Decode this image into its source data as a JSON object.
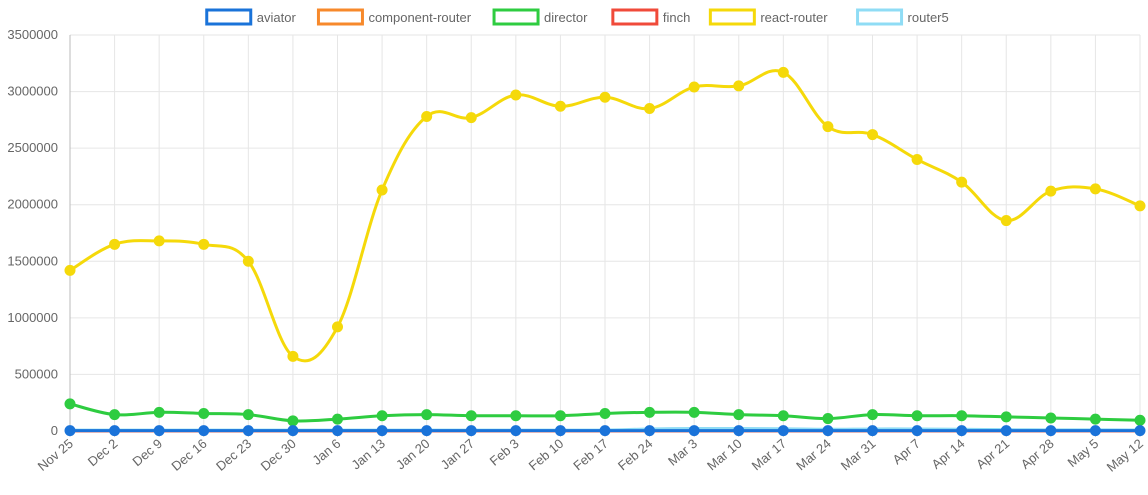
{
  "chart_data": {
    "type": "line",
    "categories": [
      "Nov 25",
      "Dec 2",
      "Dec 9",
      "Dec 16",
      "Dec 23",
      "Dec 30",
      "Jan 6",
      "Jan 13",
      "Jan 20",
      "Jan 27",
      "Feb 3",
      "Feb 10",
      "Feb 17",
      "Feb 24",
      "Mar 3",
      "Mar 10",
      "Mar 17",
      "Mar 24",
      "Mar 31",
      "Apr 7",
      "Apr 14",
      "Apr 21",
      "Apr 28",
      "May 5",
      "May 12"
    ],
    "series": [
      {
        "name": "aviator",
        "color": "#1a73d9",
        "values": [
          3000,
          3000,
          3000,
          3000,
          3000,
          3000,
          3000,
          3000,
          3000,
          3000,
          3000,
          3000,
          3000,
          3000,
          3000,
          3000,
          3000,
          3000,
          3000,
          3000,
          3000,
          3000,
          3000,
          3000,
          3000
        ]
      },
      {
        "name": "component-router",
        "color": "#f7892b",
        "values": [
          2000,
          2000,
          2000,
          2000,
          2000,
          2000,
          2000,
          2000,
          2000,
          2000,
          2000,
          2000,
          2000,
          2000,
          2000,
          2000,
          2000,
          2000,
          2000,
          2000,
          2000,
          2000,
          2000,
          2000,
          2000
        ]
      },
      {
        "name": "director",
        "color": "#2ecc40",
        "values": [
          240000,
          145000,
          165000,
          155000,
          145000,
          90000,
          105000,
          135000,
          145000,
          135000,
          135000,
          135000,
          155000,
          165000,
          165000,
          145000,
          135000,
          110000,
          145000,
          135000,
          135000,
          125000,
          115000,
          105000,
          95000
        ]
      },
      {
        "name": "finch",
        "color": "#f04a3a",
        "values": [
          1000,
          1000,
          1000,
          1000,
          1000,
          1000,
          1000,
          1000,
          1000,
          1000,
          1000,
          1000,
          1000,
          1000,
          1000,
          1000,
          1000,
          1000,
          1000,
          1000,
          1000,
          1000,
          1000,
          1000,
          1000
        ]
      },
      {
        "name": "react-router",
        "color": "#f5d90a",
        "values": [
          1420000,
          1650000,
          1680000,
          1650000,
          1500000,
          660000,
          920000,
          2130000,
          2780000,
          2770000,
          2970000,
          2870000,
          2950000,
          2850000,
          3040000,
          3050000,
          3170000,
          2690000,
          2620000,
          2400000,
          2200000,
          1860000,
          2120000,
          2140000,
          1990000
        ]
      },
      {
        "name": "router5",
        "color": "#8fdcf5",
        "values": [
          8000,
          8000,
          8000,
          8000,
          8000,
          8000,
          8000,
          8000,
          8000,
          8000,
          8000,
          8000,
          8000,
          18000,
          22000,
          22000,
          20000,
          15000,
          18000,
          18000,
          15000,
          12000,
          10000,
          10000,
          9000
        ]
      }
    ],
    "y_ticks": [
      "0",
      "500000",
      "1000000",
      "1500000",
      "2000000",
      "2500000",
      "3000000",
      "3500000"
    ],
    "ylim": [
      0,
      3500000
    ],
    "grid": true,
    "legend": "top-center"
  }
}
